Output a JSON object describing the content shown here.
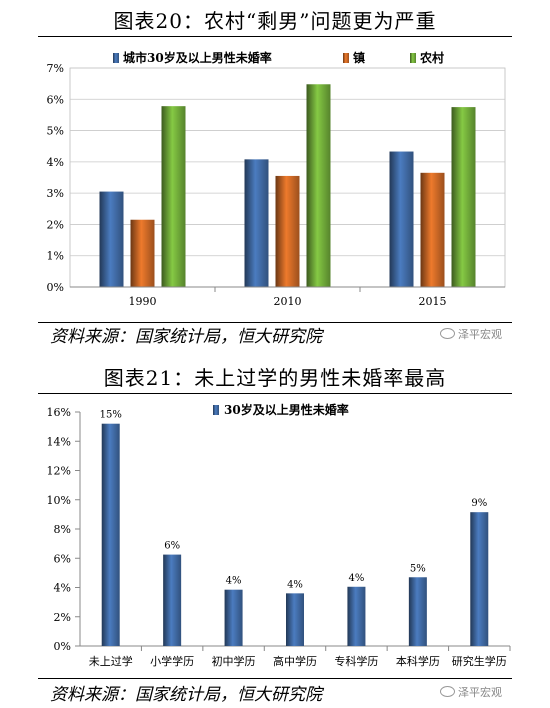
{
  "chart_data": [
    {
      "type": "bar",
      "title": "图表20：农村“剩男”问题更为严重",
      "categories": [
        "1990",
        "2010",
        "2015"
      ],
      "series": [
        {
          "name": "城市30岁及以上男性未婚率",
          "values": [
            3.05,
            4.08,
            4.33
          ],
          "color": "#4b7cc0"
        },
        {
          "name": "镇",
          "values": [
            2.15,
            3.55,
            3.65
          ],
          "color": "#ee7a2c"
        },
        {
          "name": "农村",
          "values": [
            5.78,
            6.48,
            5.75
          ],
          "color": "#85c944"
        }
      ],
      "yticks": [
        "0%",
        "1%",
        "2%",
        "3%",
        "4%",
        "5%",
        "6%",
        "7%"
      ],
      "ylim": [
        0,
        7
      ],
      "legend": "top",
      "grid": true,
      "source": "资料来源：国家统计局，恒大研究院",
      "watermark": "泽平宏观"
    },
    {
      "type": "bar",
      "title": "图表21：未上过学的男性未婚率最高",
      "categories": [
        "未上过学",
        "小学学历",
        "初中学历",
        "高中学历",
        "专科学历",
        "本科学历",
        "研究生学历"
      ],
      "series": [
        {
          "name": "30岁及以上男性未婚率",
          "values": [
            15.2,
            6.25,
            3.85,
            3.6,
            4.05,
            4.7,
            9.15
          ],
          "color": "#4b7cc0"
        }
      ],
      "data_labels": [
        "15%",
        "6%",
        "4%",
        "4%",
        "4%",
        "5%",
        "9%"
      ],
      "yticks": [
        "0%",
        "2%",
        "4%",
        "6%",
        "8%",
        "10%",
        "12%",
        "14%",
        "16%"
      ],
      "ylim": [
        0,
        16
      ],
      "legend": "top",
      "grid": false,
      "source": "资料来源：国家统计局，恒大研究院",
      "watermark": "泽平宏观"
    }
  ]
}
